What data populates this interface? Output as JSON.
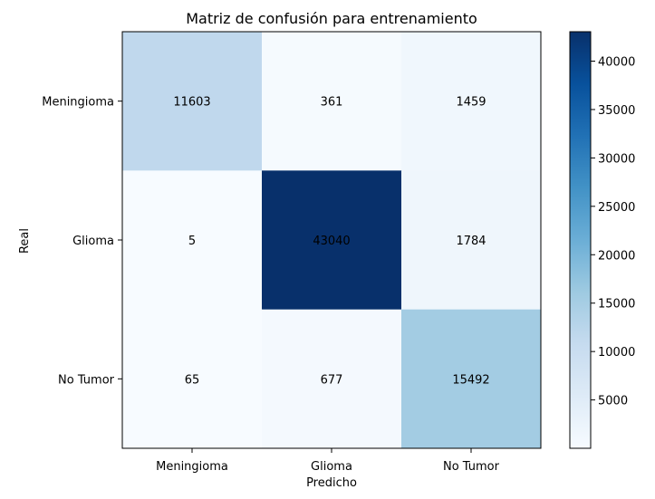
{
  "chart_data": {
    "type": "heatmap",
    "title": "Matriz de confusión para entrenamiento",
    "xlabel": "Predicho",
    "ylabel": "Real",
    "x_categories": [
      "Meningioma",
      "Glioma",
      "No Tumor"
    ],
    "y_categories": [
      "Meningioma",
      "Glioma",
      "No Tumor"
    ],
    "values": [
      [
        11603,
        361,
        1459
      ],
      [
        5,
        43040,
        1784
      ],
      [
        65,
        677,
        15492
      ]
    ],
    "colormap": "Blues",
    "color_range": [
      5,
      43040
    ],
    "colorbar_ticks": [
      5000,
      10000,
      15000,
      20000,
      25000,
      30000,
      35000,
      40000
    ],
    "colors": {
      "min": "#f7fbff",
      "max": "#08306b",
      "text": "#000000"
    }
  }
}
